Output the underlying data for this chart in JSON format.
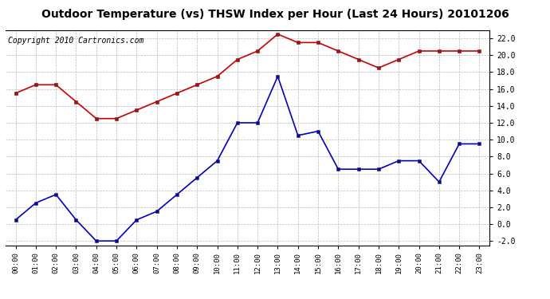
{
  "title": "Outdoor Temperature (vs) THSW Index per Hour (Last 24 Hours) 20101206",
  "copyright": "Copyright 2010 Cartronics.com",
  "hours": [
    "00:00",
    "01:00",
    "02:00",
    "03:00",
    "04:00",
    "05:00",
    "06:00",
    "07:00",
    "08:00",
    "09:00",
    "10:00",
    "11:00",
    "12:00",
    "13:00",
    "14:00",
    "15:00",
    "16:00",
    "17:00",
    "18:00",
    "19:00",
    "20:00",
    "21:00",
    "22:00",
    "23:00"
  ],
  "red_data": [
    15.5,
    16.5,
    16.5,
    14.5,
    12.5,
    12.5,
    13.5,
    14.5,
    15.5,
    16.5,
    17.5,
    19.5,
    20.5,
    22.5,
    21.5,
    21.5,
    20.5,
    19.5,
    18.5,
    19.5,
    20.5,
    20.5,
    20.5,
    20.5
  ],
  "blue_data": [
    0.5,
    2.5,
    3.5,
    0.5,
    -2.0,
    -2.0,
    0.5,
    1.5,
    3.5,
    5.5,
    7.5,
    12.0,
    12.0,
    17.5,
    10.5,
    11.0,
    6.5,
    6.5,
    6.5,
    7.5,
    7.5,
    5.0,
    9.5,
    9.5
  ],
  "red_color": "#cc0000",
  "blue_color": "#0000cc",
  "ylim": [
    -2.5,
    23.0
  ],
  "yticks": [
    -2.0,
    0.0,
    2.0,
    4.0,
    6.0,
    8.0,
    10.0,
    12.0,
    14.0,
    16.0,
    18.0,
    20.0,
    22.0
  ],
  "background_color": "#ffffff",
  "grid_color": "#bbbbbb",
  "title_fontsize": 10,
  "copyright_fontsize": 7,
  "marker_size": 3.0,
  "line_width": 1.2
}
